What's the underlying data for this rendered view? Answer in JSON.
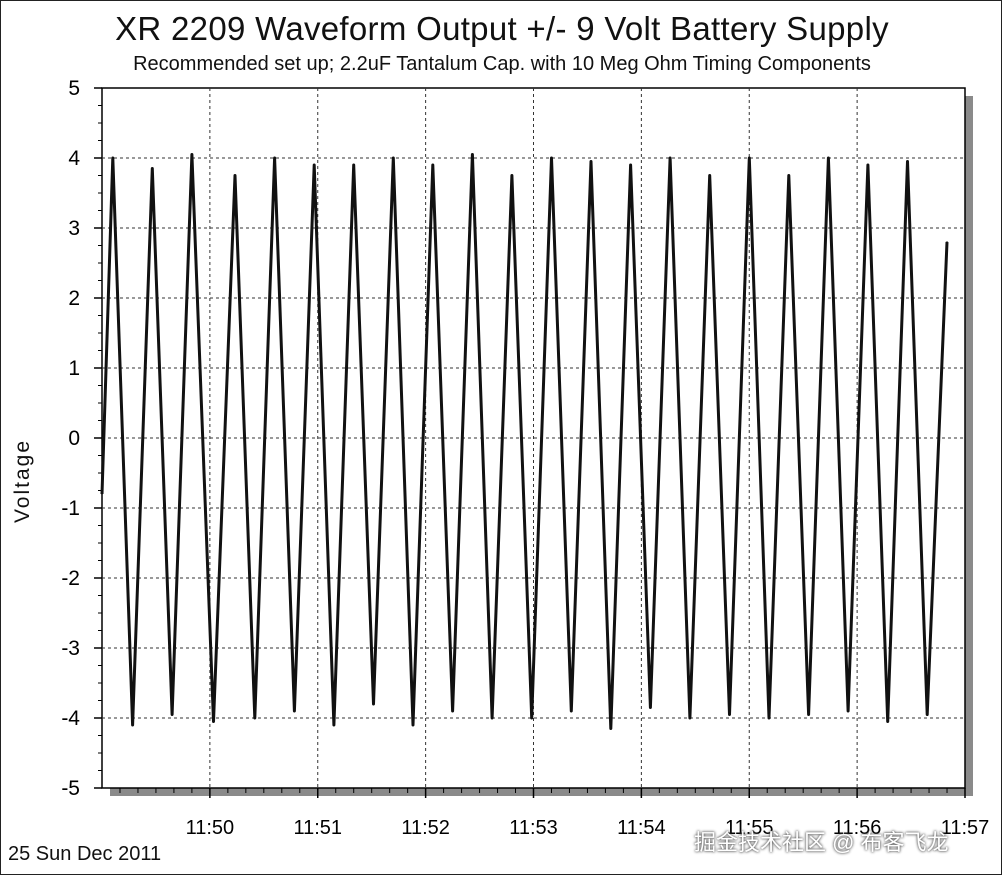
{
  "chart_data": {
    "type": "line",
    "title": "XR 2209 Waveform Output +/- 9 Volt Battery Supply",
    "subtitle": "Recommended set up; 2.2uF Tantalum Cap. with 10 Meg Ohm  Timing Components",
    "ylabel": "Voltage",
    "xlabel": "",
    "ylim": [
      -5,
      5
    ],
    "xlim": [
      "11:49",
      "11:57"
    ],
    "y_ticks": [
      "5",
      "4",
      "3",
      "2",
      "1",
      "0",
      "-1",
      "-2",
      "-3",
      "-4",
      "-5"
    ],
    "x_ticks": [
      "11:50",
      "11:51",
      "11:52",
      "11:53",
      "11:54",
      "11:55",
      "11:56",
      "11:57"
    ],
    "grid": true,
    "series": [
      {
        "points": [
          [
            "11:49:00",
            -0.8
          ],
          [
            "11:49:06",
            4.0
          ],
          [
            "11:49:17",
            -4.1
          ],
          [
            "11:49:28",
            3.85
          ],
          [
            "11:49:39",
            -3.95
          ],
          [
            "11:49:50",
            4.05
          ],
          [
            "11:50:02",
            -4.05
          ],
          [
            "11:50:14",
            3.75
          ],
          [
            "11:50:25",
            -4.0
          ],
          [
            "11:50:36",
            4.0
          ],
          [
            "11:50:47",
            -3.9
          ],
          [
            "11:50:58",
            3.9
          ],
          [
            "11:51:09",
            -4.1
          ],
          [
            "11:51:20",
            3.9
          ],
          [
            "11:51:31",
            -3.8
          ],
          [
            "11:51:42",
            4.0
          ],
          [
            "11:51:53",
            -4.1
          ],
          [
            "11:52:04",
            3.9
          ],
          [
            "11:52:15",
            -3.9
          ],
          [
            "11:52:26",
            4.05
          ],
          [
            "11:52:37",
            -4.0
          ],
          [
            "11:52:48",
            3.75
          ],
          [
            "11:52:59",
            -4.0
          ],
          [
            "11:53:10",
            4.0
          ],
          [
            "11:53:21",
            -3.9
          ],
          [
            "11:53:32",
            3.95
          ],
          [
            "11:53:43",
            -4.15
          ],
          [
            "11:53:54",
            3.9
          ],
          [
            "11:54:05",
            -3.85
          ],
          [
            "11:54:16",
            4.0
          ],
          [
            "11:54:27",
            -4.0
          ],
          [
            "11:54:38",
            3.75
          ],
          [
            "11:54:49",
            -3.95
          ],
          [
            "11:55:00",
            4.0
          ],
          [
            "11:55:11",
            -4.0
          ],
          [
            "11:55:22",
            3.75
          ],
          [
            "11:55:33",
            -3.95
          ],
          [
            "11:55:44",
            4.0
          ],
          [
            "11:55:55",
            -3.9
          ],
          [
            "11:56:06",
            3.9
          ],
          [
            "11:56:17",
            -4.05
          ],
          [
            "11:56:28",
            3.95
          ],
          [
            "11:56:39",
            -3.95
          ],
          [
            "11:56:50",
            2.8
          ]
        ]
      }
    ],
    "colors": {
      "line": "#111111",
      "grid": "#333333",
      "shadow": "#8a8a8a"
    }
  },
  "footer": {
    "date": "25 Sun Dec 2011",
    "watermark": "掘金技术社区 @ 布客飞龙"
  }
}
